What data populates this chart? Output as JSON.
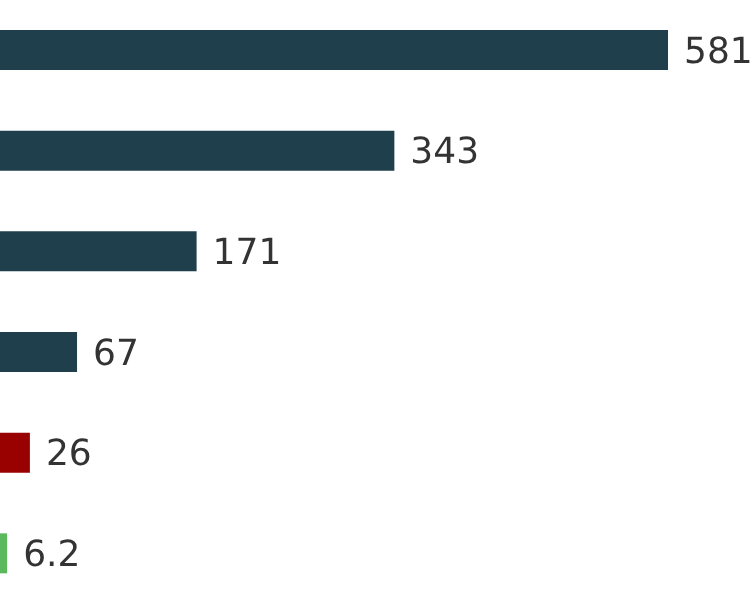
{
  "chart_data": {
    "type": "bar",
    "orientation": "horizontal",
    "categories": [
      null,
      null,
      null,
      null,
      null,
      null
    ],
    "values": [
      581,
      343,
      171,
      67,
      26,
      6.2
    ],
    "colors": [
      "#1f3f4c",
      "#1f3f4c",
      "#1f3f4c",
      "#1f3f4c",
      "#990000",
      "#5cb85c"
    ],
    "data_labels": true
  }
}
